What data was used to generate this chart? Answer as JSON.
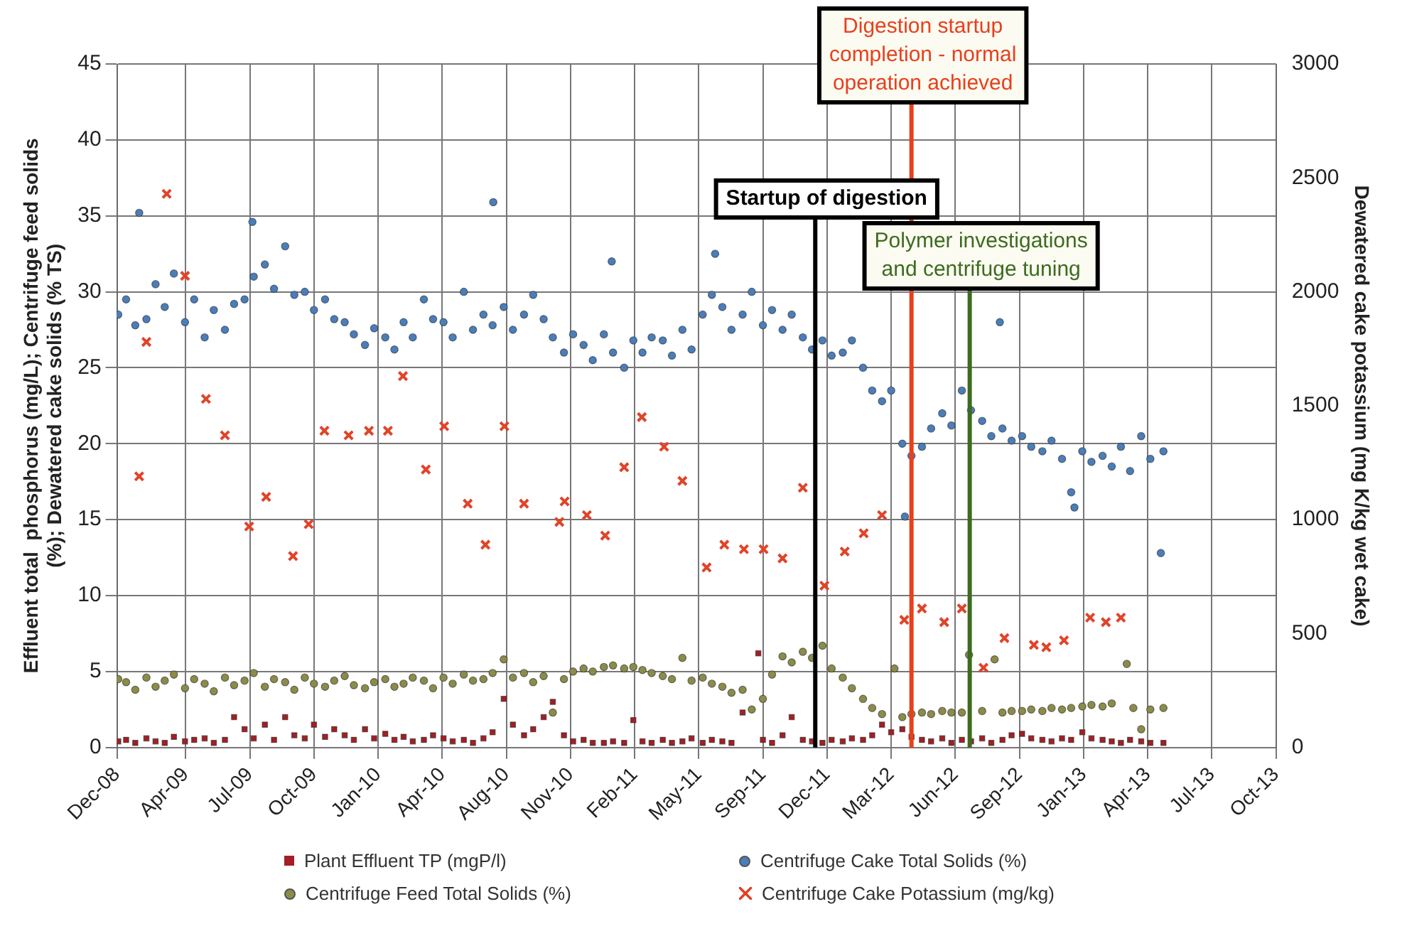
{
  "chart_data": {
    "type": "scatter",
    "ylabel": "Effluent total  phosphorus (mg/L); Centrifuge feed solids\n(%); Dewatered cake solids (% TS)",
    "y2label": "Dewatered cake potassium (mg K/kg wet cake)",
    "xlim": [
      "2008-12-18",
      "2013-10-24"
    ],
    "xticks": [
      {
        "value": "2008-12-18",
        "label": "Dec-08"
      },
      {
        "value": "2009-04-02",
        "label": "Apr-09"
      },
      {
        "value": "2009-07-09",
        "label": "Jul-09"
      },
      {
        "value": "2009-10-15",
        "label": "Oct-09"
      },
      {
        "value": "2010-01-21",
        "label": "Jan-10"
      },
      {
        "value": "2010-04-29",
        "label": "Apr-10"
      },
      {
        "value": "2010-08-05",
        "label": "Aug-10"
      },
      {
        "value": "2010-11-11",
        "label": "Nov-10"
      },
      {
        "value": "2011-02-17",
        "label": "Feb-11"
      },
      {
        "value": "2011-05-26",
        "label": "May-11"
      },
      {
        "value": "2011-09-01",
        "label": "Sep-11"
      },
      {
        "value": "2011-12-08",
        "label": "Dec-11"
      },
      {
        "value": "2012-03-15",
        "label": "Mar-12"
      },
      {
        "value": "2012-06-21",
        "label": "Jun-12"
      },
      {
        "value": "2012-09-27",
        "label": "Sep-12"
      },
      {
        "value": "2013-01-03",
        "label": "Jan-13"
      },
      {
        "value": "2013-04-11",
        "label": "Apr-13"
      },
      {
        "value": "2013-07-18",
        "label": "Jul-13"
      },
      {
        "value": "2013-10-24",
        "label": "Oct-13"
      }
    ],
    "ylim": [
      0,
      45
    ],
    "yticks": [
      0,
      5,
      10,
      15,
      20,
      25,
      30,
      35,
      40,
      45
    ],
    "y2lim": [
      0,
      3000
    ],
    "y2ticks": [
      0,
      500,
      1000,
      1500,
      2000,
      2500,
      3000
    ],
    "grid": true,
    "legend": "bottom",
    "ref_lines": [
      {
        "axis": "x",
        "value": "2011-11-20",
        "label": "Startup of digestion",
        "color": "#000000"
      },
      {
        "axis": "x",
        "value": "2012-04-15",
        "label": "Digestion startup\ncompletion - normal\noperation achieved",
        "color": "#e8401c"
      },
      {
        "axis": "x",
        "value": "2012-07-13",
        "label": "Polymer investigations\nand centrifuge tuning",
        "color": "#3d6b1f"
      }
    ],
    "series": [
      {
        "name": "Plant Effluent TP (mgP/l)",
        "color": "#a31f24",
        "marker": "square",
        "x": [
          "2008-12-20",
          "2009-01-01",
          "2009-01-15",
          "2009-02-01",
          "2009-02-15",
          "2009-03-01",
          "2009-03-15",
          "2009-04-01",
          "2009-04-15",
          "2009-05-01",
          "2009-05-15",
          "2009-06-01",
          "2009-06-15",
          "2009-07-01",
          "2009-07-15",
          "2009-08-01",
          "2009-08-15",
          "2009-09-01",
          "2009-09-15",
          "2009-10-01",
          "2009-10-15",
          "2009-11-01",
          "2009-11-15",
          "2009-12-01",
          "2009-12-15",
          "2010-01-01",
          "2010-01-15",
          "2010-02-01",
          "2010-02-15",
          "2010-03-01",
          "2010-03-15",
          "2010-04-01",
          "2010-04-15",
          "2010-05-01",
          "2010-05-15",
          "2010-06-01",
          "2010-06-15",
          "2010-07-01",
          "2010-07-15",
          "2010-08-01",
          "2010-08-15",
          "2010-09-01",
          "2010-09-15",
          "2010-10-01",
          "2010-10-15",
          "2010-11-01",
          "2010-11-15",
          "2010-12-01",
          "2010-12-15",
          "2011-01-01",
          "2011-01-15",
          "2011-02-01",
          "2011-02-15",
          "2011-03-01",
          "2011-03-15",
          "2011-04-01",
          "2011-04-15",
          "2011-05-01",
          "2011-05-15",
          "2011-06-01",
          "2011-06-15",
          "2011-07-01",
          "2011-07-15",
          "2011-08-01",
          "2011-08-25",
          "2011-09-01",
          "2011-09-15",
          "2011-10-01",
          "2011-10-15",
          "2011-11-01",
          "2011-11-15",
          "2011-12-01",
          "2011-12-15",
          "2012-01-01",
          "2012-01-15",
          "2012-02-01",
          "2012-02-15",
          "2012-03-01",
          "2012-03-15",
          "2012-04-01",
          "2012-04-15",
          "2012-05-01",
          "2012-05-15",
          "2012-06-01",
          "2012-06-15",
          "2012-07-01",
          "2012-07-15",
          "2012-08-01",
          "2012-08-15",
          "2012-09-01",
          "2012-09-15",
          "2012-10-01",
          "2012-10-15",
          "2012-11-01",
          "2012-11-15",
          "2012-12-01",
          "2012-12-15",
          "2013-01-01",
          "2013-01-15",
          "2013-02-01",
          "2013-02-15",
          "2013-03-01",
          "2013-03-15",
          "2013-04-01",
          "2013-04-15",
          "2013-05-05"
        ],
        "values": [
          0.4,
          0.5,
          0.3,
          0.6,
          0.4,
          0.3,
          0.7,
          0.4,
          0.5,
          0.6,
          0.3,
          0.5,
          2.0,
          1.2,
          0.6,
          1.5,
          0.5,
          2.0,
          0.8,
          0.6,
          1.5,
          0.7,
          1.2,
          0.8,
          0.5,
          1.2,
          0.6,
          0.9,
          0.5,
          0.7,
          0.4,
          0.5,
          0.8,
          0.6,
          0.4,
          0.5,
          0.3,
          0.6,
          1.0,
          3.2,
          1.5,
          0.8,
          1.2,
          2.0,
          3.0,
          0.8,
          0.4,
          0.5,
          0.3,
          0.3,
          0.4,
          0.3,
          1.8,
          0.4,
          0.3,
          0.5,
          0.3,
          0.4,
          0.6,
          0.3,
          0.5,
          0.4,
          0.3,
          2.3,
          6.2,
          0.5,
          0.3,
          0.8,
          2.0,
          0.5,
          0.4,
          0.3,
          0.5,
          0.4,
          0.6,
          0.5,
          0.8,
          1.5,
          1.0,
          1.2,
          0.7,
          0.5,
          0.4,
          0.6,
          0.3,
          0.5,
          0.4,
          0.6,
          0.3,
          0.5,
          0.8,
          0.9,
          0.6,
          0.5,
          0.4,
          0.6,
          0.5,
          1.0,
          0.6,
          0.5,
          0.4,
          0.3,
          0.5,
          0.4,
          0.3,
          0.3
        ]
      },
      {
        "name": "Centrifuge Cake Total Solids (%)",
        "color": "#4a7ebb",
        "marker": "circle",
        "x": [
          "2008-12-20",
          "2009-01-01",
          "2009-01-15",
          "2009-01-21",
          "2009-02-01",
          "2009-02-15",
          "2009-03-01",
          "2009-03-15",
          "2009-04-01",
          "2009-04-15",
          "2009-05-01",
          "2009-05-15",
          "2009-06-01",
          "2009-06-15",
          "2009-07-01",
          "2009-07-13",
          "2009-07-15",
          "2009-08-01",
          "2009-08-15",
          "2009-09-01",
          "2009-09-15",
          "2009-10-01",
          "2009-10-15",
          "2009-11-01",
          "2009-11-15",
          "2009-12-01",
          "2009-12-15",
          "2010-01-01",
          "2010-01-15",
          "2010-02-01",
          "2010-02-15",
          "2010-03-01",
          "2010-03-15",
          "2010-04-01",
          "2010-04-15",
          "2010-05-01",
          "2010-05-15",
          "2010-06-01",
          "2010-06-15",
          "2010-07-01",
          "2010-07-15",
          "2010-07-16",
          "2010-08-01",
          "2010-08-15",
          "2010-09-01",
          "2010-09-15",
          "2010-10-01",
          "2010-10-15",
          "2010-11-01",
          "2010-11-15",
          "2010-12-01",
          "2010-12-15",
          "2011-01-01",
          "2011-01-13",
          "2011-01-15",
          "2011-02-01",
          "2011-02-15",
          "2011-03-01",
          "2011-03-15",
          "2011-04-01",
          "2011-04-15",
          "2011-05-01",
          "2011-05-15",
          "2011-06-01",
          "2011-06-15",
          "2011-06-20",
          "2011-07-01",
          "2011-07-15",
          "2011-08-01",
          "2011-08-15",
          "2011-09-01",
          "2011-09-15",
          "2011-10-01",
          "2011-10-15",
          "2011-11-01",
          "2011-11-15",
          "2011-12-01",
          "2011-12-15",
          "2012-01-01",
          "2012-01-15",
          "2012-02-01",
          "2012-02-15",
          "2012-03-01",
          "2012-03-15",
          "2012-04-01",
          "2012-04-05",
          "2012-04-15",
          "2012-05-01",
          "2012-05-15",
          "2012-06-01",
          "2012-06-15",
          "2012-07-01",
          "2012-07-15",
          "2012-08-01",
          "2012-08-15",
          "2012-08-28",
          "2012-09-01",
          "2012-09-15",
          "2012-10-01",
          "2012-10-15",
          "2012-11-01",
          "2012-11-15",
          "2012-12-01",
          "2012-12-15",
          "2012-12-20",
          "2013-01-01",
          "2013-01-15",
          "2013-02-01",
          "2013-02-15",
          "2013-03-01",
          "2013-03-15",
          "2013-04-01",
          "2013-04-15",
          "2013-05-01",
          "2013-05-05"
        ],
        "values": [
          28.5,
          29.5,
          27.8,
          35.2,
          28.2,
          30.5,
          29.0,
          31.2,
          28.0,
          29.5,
          27.0,
          28.8,
          27.5,
          29.2,
          29.5,
          34.6,
          31.0,
          31.8,
          30.2,
          33.0,
          29.8,
          30.0,
          28.8,
          29.5,
          28.2,
          28.0,
          27.2,
          26.5,
          27.6,
          27.0,
          26.2,
          28.0,
          27.0,
          29.5,
          28.2,
          28.0,
          27.0,
          30.0,
          27.5,
          28.5,
          27.8,
          35.9,
          29.0,
          27.5,
          28.5,
          29.8,
          28.2,
          27.0,
          26.0,
          27.2,
          26.5,
          25.5,
          27.2,
          32.0,
          26.0,
          25.0,
          26.8,
          26.0,
          27.0,
          26.8,
          25.8,
          27.5,
          26.2,
          28.5,
          29.8,
          32.5,
          29.0,
          27.5,
          28.5,
          30.0,
          27.8,
          28.8,
          27.5,
          28.5,
          27.0,
          26.2,
          26.8,
          25.8,
          26.0,
          26.8,
          25.0,
          23.5,
          22.8,
          23.5,
          20.0,
          15.2,
          19.2,
          19.8,
          21.0,
          22.0,
          21.2,
          23.5,
          22.2,
          21.5,
          20.5,
          28.0,
          21.0,
          20.2,
          20.5,
          19.8,
          19.5,
          20.2,
          19.0,
          16.8,
          15.8,
          19.5,
          18.8,
          19.2,
          18.5,
          19.8,
          18.2,
          20.5,
          19.0,
          12.8,
          19.5
        ]
      },
      {
        "name": "Centrifuge Feed Total Solids (%)",
        "color": "#8c8c4a",
        "marker": "circle",
        "x": [
          "2008-12-20",
          "2009-01-01",
          "2009-01-15",
          "2009-02-01",
          "2009-02-15",
          "2009-03-01",
          "2009-03-15",
          "2009-04-01",
          "2009-04-15",
          "2009-05-01",
          "2009-05-15",
          "2009-06-01",
          "2009-06-15",
          "2009-07-01",
          "2009-07-15",
          "2009-08-01",
          "2009-08-15",
          "2009-09-01",
          "2009-09-15",
          "2009-10-01",
          "2009-10-15",
          "2009-11-01",
          "2009-11-15",
          "2009-12-01",
          "2009-12-15",
          "2010-01-01",
          "2010-01-15",
          "2010-02-01",
          "2010-02-15",
          "2010-03-01",
          "2010-03-15",
          "2010-04-01",
          "2010-04-15",
          "2010-05-01",
          "2010-05-15",
          "2010-06-01",
          "2010-06-15",
          "2010-07-01",
          "2010-07-15",
          "2010-08-01",
          "2010-08-15",
          "2010-09-01",
          "2010-09-15",
          "2010-10-01",
          "2010-10-15",
          "2010-11-01",
          "2010-11-15",
          "2010-12-01",
          "2010-12-15",
          "2011-01-01",
          "2011-01-15",
          "2011-02-01",
          "2011-02-15",
          "2011-03-01",
          "2011-03-15",
          "2011-04-01",
          "2011-04-15",
          "2011-05-01",
          "2011-05-15",
          "2011-06-01",
          "2011-06-15",
          "2011-07-01",
          "2011-07-15",
          "2011-08-01",
          "2011-08-15",
          "2011-09-01",
          "2011-09-15",
          "2011-10-01",
          "2011-10-15",
          "2011-11-01",
          "2011-11-15",
          "2011-12-01",
          "2011-12-15",
          "2012-01-01",
          "2012-01-15",
          "2012-02-01",
          "2012-02-15",
          "2012-03-01",
          "2012-03-20",
          "2012-04-01",
          "2012-04-15",
          "2012-05-01",
          "2012-05-15",
          "2012-06-01",
          "2012-06-15",
          "2012-07-01",
          "2012-07-12",
          "2012-08-01",
          "2012-08-20",
          "2012-09-01",
          "2012-09-15",
          "2012-10-01",
          "2012-10-15",
          "2012-11-01",
          "2012-11-15",
          "2012-12-01",
          "2012-12-15",
          "2013-01-01",
          "2013-01-15",
          "2013-02-01",
          "2013-02-15",
          "2013-03-10",
          "2013-03-20",
          "2013-04-01",
          "2013-04-15",
          "2013-05-05"
        ],
        "values": [
          4.5,
          4.3,
          3.8,
          4.6,
          4.0,
          4.4,
          4.8,
          3.9,
          4.5,
          4.2,
          3.7,
          4.6,
          4.1,
          4.4,
          4.9,
          4.0,
          4.5,
          4.3,
          3.8,
          4.6,
          4.2,
          4.0,
          4.4,
          4.7,
          4.1,
          3.9,
          4.3,
          4.5,
          4.0,
          4.2,
          4.6,
          4.4,
          3.9,
          4.6,
          4.2,
          4.8,
          4.4,
          4.5,
          4.9,
          5.8,
          4.6,
          4.9,
          4.3,
          4.7,
          2.3,
          4.5,
          5.0,
          5.2,
          5.0,
          5.3,
          5.4,
          5.2,
          5.3,
          5.1,
          4.9,
          4.7,
          4.5,
          5.9,
          4.4,
          4.6,
          4.2,
          4.0,
          3.6,
          3.8,
          2.5,
          3.2,
          4.8,
          6.0,
          5.6,
          6.3,
          5.9,
          6.7,
          5.2,
          4.6,
          3.9,
          3.2,
          2.6,
          2.2,
          5.2,
          2.0,
          2.2,
          2.3,
          2.2,
          2.4,
          2.3,
          2.3,
          6.1,
          2.4,
          5.8,
          2.3,
          2.4,
          2.4,
          2.5,
          2.4,
          2.6,
          2.5,
          2.6,
          2.7,
          2.8,
          2.7,
          2.9,
          5.5,
          2.6,
          1.2,
          2.5,
          2.6
        ]
      },
      {
        "name": "Centrifuge Cake Potassium (mg/kg)",
        "color": "#e0442a",
        "marker": "cross",
        "axis": "y2",
        "x": [
          "2009-01-21",
          "2009-02-01",
          "2009-03-04",
          "2009-04-01",
          "2009-05-03",
          "2009-06-01",
          "2009-07-08",
          "2009-08-03",
          "2009-09-13",
          "2009-10-07",
          "2009-10-31",
          "2009-12-07",
          "2010-01-07",
          "2010-02-05",
          "2010-02-28",
          "2010-04-04",
          "2010-05-02",
          "2010-06-07",
          "2010-07-04",
          "2010-08-02",
          "2010-09-01",
          "2010-10-25",
          "2010-11-02",
          "2010-12-06",
          "2011-01-03",
          "2011-02-01",
          "2011-02-28",
          "2011-04-03",
          "2011-05-01",
          "2011-06-07",
          "2011-07-04",
          "2011-08-03",
          "2011-09-02",
          "2011-10-01",
          "2011-11-01",
          "2011-12-04",
          "2012-01-04",
          "2012-02-02",
          "2012-03-01",
          "2012-04-04",
          "2012-05-01",
          "2012-06-04",
          "2012-07-01",
          "2012-08-03",
          "2012-09-04",
          "2012-10-19",
          "2012-11-07",
          "2012-12-04",
          "2013-01-13",
          "2013-02-06",
          "2013-03-01"
        ],
        "values": [
          1190,
          1780,
          2430,
          2070,
          1530,
          1370,
          970,
          1100,
          840,
          980,
          1390,
          1370,
          1390,
          1390,
          1630,
          1220,
          1410,
          1070,
          890,
          1410,
          1070,
          990,
          1080,
          1020,
          930,
          1230,
          1450,
          1320,
          1170,
          790,
          890,
          870,
          870,
          830,
          1140,
          710,
          860,
          940,
          1020,
          560,
          610,
          550,
          610,
          350,
          480,
          450,
          440,
          470,
          570,
          550,
          570
        ]
      }
    ]
  }
}
